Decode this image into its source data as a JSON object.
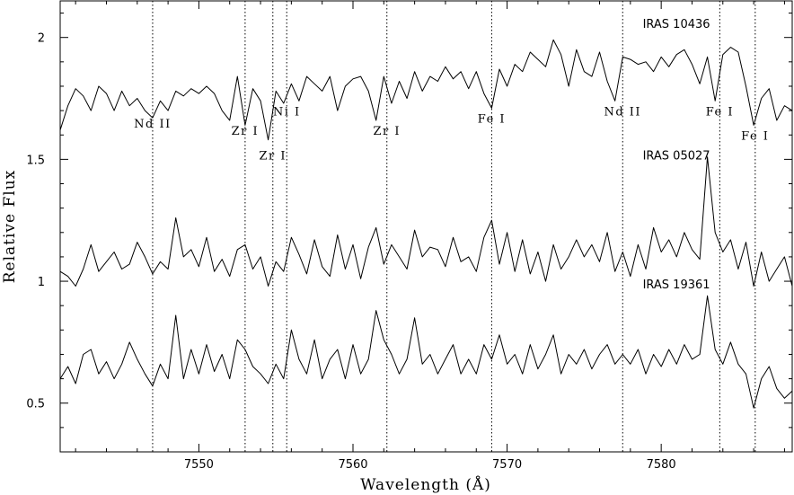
{
  "chart_data": {
    "type": "line",
    "xlabel": "Wavelength (Å)",
    "ylabel": "Relative Flux",
    "xlim": [
      7541,
      7588.5
    ],
    "ylim": [
      0.3,
      2.15
    ],
    "xticks": [
      7550,
      7560,
      7570,
      7580
    ],
    "yticks": [
      0.5,
      1,
      1.5,
      2
    ],
    "ytick_labels": [
      "0.5",
      "1",
      "1.5",
      "2"
    ],
    "grid": false,
    "series": [
      {
        "name": "IRAS 10436",
        "x": [
          7541,
          7541.5,
          7542,
          7542.5,
          7543,
          7543.5,
          7544,
          7544.5,
          7545,
          7545.5,
          7546,
          7546.5,
          7547,
          7547.5,
          7548,
          7548.5,
          7549,
          7549.5,
          7550,
          7550.5,
          7551,
          7551.5,
          7552,
          7552.5,
          7553,
          7553.5,
          7554,
          7554.5,
          7555,
          7555.5,
          7556,
          7556.5,
          7557,
          7557.5,
          7558,
          7558.5,
          7559,
          7559.5,
          7560,
          7560.5,
          7561,
          7561.5,
          7562,
          7562.5,
          7563,
          7563.5,
          7564,
          7564.5,
          7565,
          7565.5,
          7566,
          7566.5,
          7567,
          7567.5,
          7568,
          7568.5,
          7569,
          7569.5,
          7570,
          7570.5,
          7571,
          7571.5,
          7572,
          7572.5,
          7573,
          7573.5,
          7574,
          7574.5,
          7575,
          7575.5,
          7576,
          7576.5,
          7577,
          7577.5,
          7578,
          7578.5,
          7579,
          7579.5,
          7580,
          7580.5,
          7581,
          7581.5,
          7582,
          7582.5,
          7583,
          7583.5,
          7584,
          7584.5,
          7585,
          7585.5,
          7586,
          7586.5,
          7587,
          7587.5,
          7588,
          7588.5
        ],
        "y": [
          1.62,
          1.72,
          1.79,
          1.76,
          1.7,
          1.8,
          1.77,
          1.7,
          1.78,
          1.72,
          1.75,
          1.7,
          1.67,
          1.74,
          1.7,
          1.78,
          1.76,
          1.79,
          1.77,
          1.8,
          1.77,
          1.7,
          1.66,
          1.84,
          1.64,
          1.79,
          1.74,
          1.58,
          1.78,
          1.73,
          1.81,
          1.74,
          1.84,
          1.81,
          1.78,
          1.84,
          1.7,
          1.8,
          1.83,
          1.84,
          1.78,
          1.66,
          1.84,
          1.73,
          1.82,
          1.75,
          1.86,
          1.78,
          1.84,
          1.82,
          1.88,
          1.83,
          1.86,
          1.79,
          1.86,
          1.77,
          1.71,
          1.87,
          1.8,
          1.89,
          1.86,
          1.94,
          1.91,
          1.88,
          1.99,
          1.93,
          1.8,
          1.95,
          1.86,
          1.84,
          1.94,
          1.82,
          1.74,
          1.92,
          1.91,
          1.89,
          1.9,
          1.86,
          1.92,
          1.88,
          1.93,
          1.95,
          1.89,
          1.81,
          1.92,
          1.74,
          1.93,
          1.96,
          1.94,
          1.8,
          1.64,
          1.75,
          1.79,
          1.66,
          1.72,
          1.7
        ]
      },
      {
        "name": "IRAS 05027",
        "x": [
          7541,
          7541.5,
          7542,
          7542.5,
          7543,
          7543.5,
          7544,
          7544.5,
          7545,
          7545.5,
          7546,
          7546.5,
          7547,
          7547.5,
          7548,
          7548.5,
          7549,
          7549.5,
          7550,
          7550.5,
          7551,
          7551.5,
          7552,
          7552.5,
          7553,
          7553.5,
          7554,
          7554.5,
          7555,
          7555.5,
          7556,
          7556.5,
          7557,
          7557.5,
          7558,
          7558.5,
          7559,
          7559.5,
          7560,
          7560.5,
          7561,
          7561.5,
          7562,
          7562.5,
          7563,
          7563.5,
          7564,
          7564.5,
          7565,
          7565.5,
          7566,
          7566.5,
          7567,
          7567.5,
          7568,
          7568.5,
          7569,
          7569.5,
          7570,
          7570.5,
          7571,
          7571.5,
          7572,
          7572.5,
          7573,
          7573.5,
          7574,
          7574.5,
          7575,
          7575.5,
          7576,
          7576.5,
          7577,
          7577.5,
          7578,
          7578.5,
          7579,
          7579.5,
          7580,
          7580.5,
          7581,
          7581.5,
          7582,
          7582.5,
          7583,
          7583.5,
          7584,
          7584.5,
          7585,
          7585.5,
          7586,
          7586.5,
          7587,
          7587.5,
          7588,
          7588.5
        ],
        "y": [
          1.04,
          1.02,
          0.98,
          1.05,
          1.15,
          1.04,
          1.08,
          1.12,
          1.05,
          1.07,
          1.16,
          1.1,
          1.03,
          1.08,
          1.05,
          1.26,
          1.1,
          1.13,
          1.06,
          1.18,
          1.04,
          1.09,
          1.02,
          1.13,
          1.15,
          1.05,
          1.1,
          0.98,
          1.08,
          1.04,
          1.18,
          1.11,
          1.03,
          1.17,
          1.06,
          1.02,
          1.19,
          1.05,
          1.15,
          1.01,
          1.14,
          1.22,
          1.07,
          1.15,
          1.1,
          1.05,
          1.21,
          1.1,
          1.14,
          1.13,
          1.06,
          1.18,
          1.08,
          1.1,
          1.04,
          1.18,
          1.25,
          1.07,
          1.2,
          1.04,
          1.17,
          1.03,
          1.12,
          1.0,
          1.15,
          1.05,
          1.1,
          1.17,
          1.1,
          1.15,
          1.08,
          1.2,
          1.04,
          1.12,
          1.02,
          1.15,
          1.05,
          1.22,
          1.12,
          1.17,
          1.1,
          1.2,
          1.13,
          1.09,
          1.51,
          1.2,
          1.12,
          1.17,
          1.05,
          1.16,
          0.98,
          1.12,
          1.0,
          1.05,
          1.1,
          0.98
        ]
      },
      {
        "name": "IRAS 19361",
        "x": [
          7541,
          7541.5,
          7542,
          7542.5,
          7543,
          7543.5,
          7544,
          7544.5,
          7545,
          7545.5,
          7546,
          7546.5,
          7547,
          7547.5,
          7548,
          7548.5,
          7549,
          7549.5,
          7550,
          7550.5,
          7551,
          7551.5,
          7552,
          7552.5,
          7553,
          7553.5,
          7554,
          7554.5,
          7555,
          7555.5,
          7556,
          7556.5,
          7557,
          7557.5,
          7558,
          7558.5,
          7559,
          7559.5,
          7560,
          7560.5,
          7561,
          7561.5,
          7562,
          7562.5,
          7563,
          7563.5,
          7564,
          7564.5,
          7565,
          7565.5,
          7566,
          7566.5,
          7567,
          7567.5,
          7568,
          7568.5,
          7569,
          7569.5,
          7570,
          7570.5,
          7571,
          7571.5,
          7572,
          7572.5,
          7573,
          7573.5,
          7574,
          7574.5,
          7575,
          7575.5,
          7576,
          7576.5,
          7577,
          7577.5,
          7578,
          7578.5,
          7579,
          7579.5,
          7580,
          7580.5,
          7581,
          7581.5,
          7582,
          7582.5,
          7583,
          7583.5,
          7584,
          7584.5,
          7585,
          7585.5,
          7586,
          7586.5,
          7587,
          7587.5,
          7588,
          7588.5
        ],
        "y": [
          0.6,
          0.65,
          0.58,
          0.7,
          0.72,
          0.62,
          0.67,
          0.6,
          0.66,
          0.75,
          0.68,
          0.62,
          0.57,
          0.66,
          0.6,
          0.86,
          0.6,
          0.72,
          0.62,
          0.74,
          0.63,
          0.7,
          0.6,
          0.76,
          0.72,
          0.65,
          0.62,
          0.58,
          0.66,
          0.6,
          0.8,
          0.68,
          0.62,
          0.76,
          0.6,
          0.68,
          0.72,
          0.6,
          0.74,
          0.62,
          0.68,
          0.88,
          0.76,
          0.7,
          0.62,
          0.68,
          0.85,
          0.66,
          0.7,
          0.62,
          0.68,
          0.74,
          0.62,
          0.68,
          0.62,
          0.74,
          0.68,
          0.78,
          0.66,
          0.7,
          0.62,
          0.74,
          0.64,
          0.7,
          0.78,
          0.62,
          0.7,
          0.66,
          0.72,
          0.64,
          0.7,
          0.74,
          0.66,
          0.7,
          0.66,
          0.72,
          0.62,
          0.7,
          0.65,
          0.72,
          0.66,
          0.74,
          0.68,
          0.7,
          0.94,
          0.72,
          0.66,
          0.75,
          0.66,
          0.62,
          0.48,
          0.6,
          0.65,
          0.56,
          0.52,
          0.55
        ]
      }
    ],
    "star_labels": [
      {
        "text": "IRAS 10436",
        "x": 7578.8,
        "y": 2.04
      },
      {
        "text": "IRAS 05027",
        "x": 7578.8,
        "y": 1.5
      },
      {
        "text": "IRAS 19361",
        "x": 7578.8,
        "y": 0.97
      }
    ],
    "line_ids": [
      {
        "label": "Nd II",
        "x": 7547.0,
        "label_y": 1.63
      },
      {
        "label": "Zr I",
        "x": 7553.0,
        "label_y": 1.6
      },
      {
        "label": "Zr I",
        "x": 7554.8,
        "label_y": 1.5
      },
      {
        "label": "Ni I",
        "x": 7555.7,
        "label_y": 1.68
      },
      {
        "label": "Zr I",
        "x": 7562.2,
        "label_y": 1.6
      },
      {
        "label": "Fe I",
        "x": 7569.0,
        "label_y": 1.65
      },
      {
        "label": "Nd II",
        "x": 7577.5,
        "label_y": 1.68
      },
      {
        "label": "Fe I",
        "x": 7583.8,
        "label_y": 1.68
      },
      {
        "label": "Fe I",
        "x": 7586.1,
        "label_y": 1.58
      }
    ]
  }
}
